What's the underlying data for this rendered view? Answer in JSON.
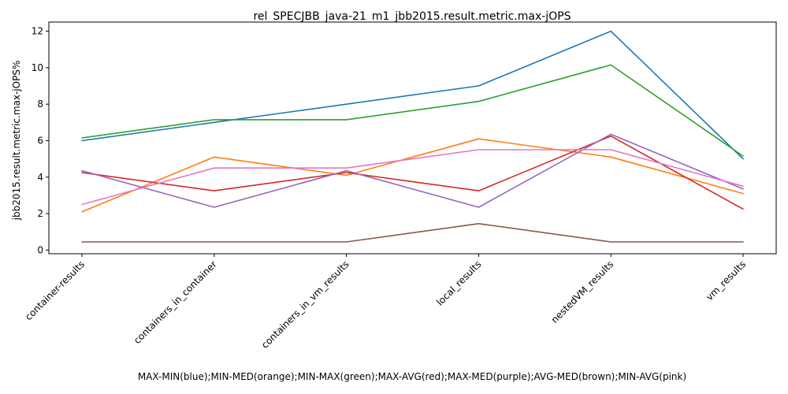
{
  "chart_data": {
    "type": "line",
    "title": "rel_SPECJBB_java-21_m1_jbb2015.result.metric.max-jOPS",
    "xlabel": "MAX-MIN(blue);MIN-MED(orange);MIN-MAX(green);MAX-AVG(red);MAX-MED(purple);AVG-MED(brown);MIN-AVG(pink)",
    "ylabel": "jbb2015.result.metric.max-jOPS%",
    "categories": [
      "container-results",
      "containers_in_container",
      "containers_in_vm_results",
      "local_results",
      "nestedVM_results",
      "vm_results"
    ],
    "yticks": [
      "0",
      "2",
      "4",
      "6",
      "8",
      "10",
      "12"
    ],
    "ylim": [
      -0.2,
      12.5
    ],
    "grid": false,
    "series": [
      {
        "color": "#1f77b4",
        "values": [
          6.0,
          7.0,
          8.0,
          9.0,
          12.0,
          5.0
        ]
      },
      {
        "color": "#ff7f0e",
        "values": [
          2.1,
          5.1,
          4.1,
          6.1,
          5.1,
          3.1
        ]
      },
      {
        "color": "#2ca02c",
        "values": [
          6.15,
          7.15,
          7.15,
          8.15,
          10.15,
          5.15
        ]
      },
      {
        "color": "#d62728",
        "values": [
          4.25,
          3.25,
          4.25,
          3.25,
          6.25,
          2.25
        ]
      },
      {
        "color": "#9467bd",
        "values": [
          4.35,
          2.35,
          4.35,
          2.35,
          6.35,
          3.35
        ]
      },
      {
        "color": "#8c564b",
        "values": [
          0.45,
          0.45,
          0.45,
          1.45,
          0.45,
          0.45
        ]
      },
      {
        "color": "#e377c2",
        "values": [
          2.5,
          4.5,
          4.5,
          5.5,
          5.5,
          3.5
        ]
      }
    ]
  }
}
